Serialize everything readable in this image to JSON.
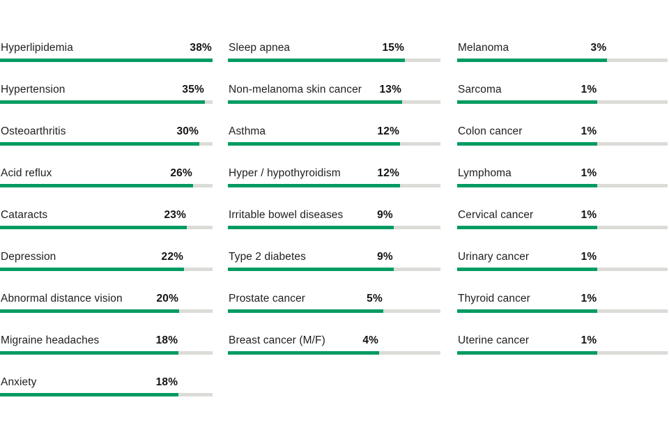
{
  "page": {
    "background": "#ffffff"
  },
  "chart_data": {
    "type": "bar",
    "orientation": "horizontal",
    "unit": "%",
    "title": "",
    "legend": "none",
    "grid": "off",
    "value_range": [
      0,
      38
    ],
    "colors": {
      "fill": "#009b61",
      "track": "#dbdbd7",
      "label": "#1e1e1e",
      "value": "#141414"
    },
    "columns": [
      {
        "name": "column-1",
        "items": [
          {
            "label": "Hyperlipidemia",
            "value": 38,
            "display": "38%",
            "fill_pct": 100
          },
          {
            "label": "Hypertension",
            "value": 35,
            "display": "35%",
            "fill_pct": 96.4
          },
          {
            "label": "Osteoarthritis",
            "value": 30,
            "display": "30%",
            "fill_pct": 93.8
          },
          {
            "label": "Acid reflux",
            "value": 26,
            "display": "26%",
            "fill_pct": 90.8
          },
          {
            "label": "Cataracts",
            "value": 23,
            "display": "23%",
            "fill_pct": 87.9
          },
          {
            "label": "Depression",
            "value": 22,
            "display": "22%",
            "fill_pct": 86.6
          },
          {
            "label": "Abnormal distance vision",
            "value": 20,
            "display": "20%",
            "fill_pct": 84.3
          },
          {
            "label": "Migraine headaches",
            "value": 18,
            "display": "18%",
            "fill_pct": 84.0
          },
          {
            "label": "Anxiety",
            "value": 18,
            "display": "18%",
            "fill_pct": 84.0
          }
        ]
      },
      {
        "name": "column-2",
        "items": [
          {
            "label": "Sleep apnea",
            "value": 15,
            "display": "15%",
            "fill_pct": 83.3
          },
          {
            "label": "Non-melanoma skin cancer",
            "value": 13,
            "display": "13%",
            "fill_pct": 82.0
          },
          {
            "label": "Asthma",
            "value": 12,
            "display": "12%",
            "fill_pct": 81.0
          },
          {
            "label": "Hyper / hypothyroidism",
            "value": 12,
            "display": "12%",
            "fill_pct": 81.0
          },
          {
            "label": "Irritable bowel diseases",
            "value": 9,
            "display": "9%",
            "fill_pct": 78.0
          },
          {
            "label": "Type 2 diabetes",
            "value": 9,
            "display": "9%",
            "fill_pct": 78.0
          },
          {
            "label": "Prostate cancer",
            "value": 5,
            "display": "5%",
            "fill_pct": 73.1
          },
          {
            "label": "Breast cancer (M/F)",
            "value": 4,
            "display": "4%",
            "fill_pct": 71.2
          }
        ]
      },
      {
        "name": "column-3",
        "items": [
          {
            "label": "Melanoma",
            "value": 3,
            "display": "3%",
            "fill_pct": 71.3
          },
          {
            "label": "Sarcoma",
            "value": 1,
            "display": "1%",
            "fill_pct": 66.7
          },
          {
            "label": "Colon cancer",
            "value": 1,
            "display": "1%",
            "fill_pct": 66.7
          },
          {
            "label": "Lymphoma",
            "value": 1,
            "display": "1%",
            "fill_pct": 66.7
          },
          {
            "label": "Cervical cancer",
            "value": 1,
            "display": "1%",
            "fill_pct": 66.7
          },
          {
            "label": "Urinary cancer",
            "value": 1,
            "display": "1%",
            "fill_pct": 66.7
          },
          {
            "label": "Thyroid cancer",
            "value": 1,
            "display": "1%",
            "fill_pct": 66.7
          },
          {
            "label": "Uterine cancer",
            "value": 1,
            "display": "1%",
            "fill_pct": 66.7
          }
        ]
      }
    ]
  }
}
